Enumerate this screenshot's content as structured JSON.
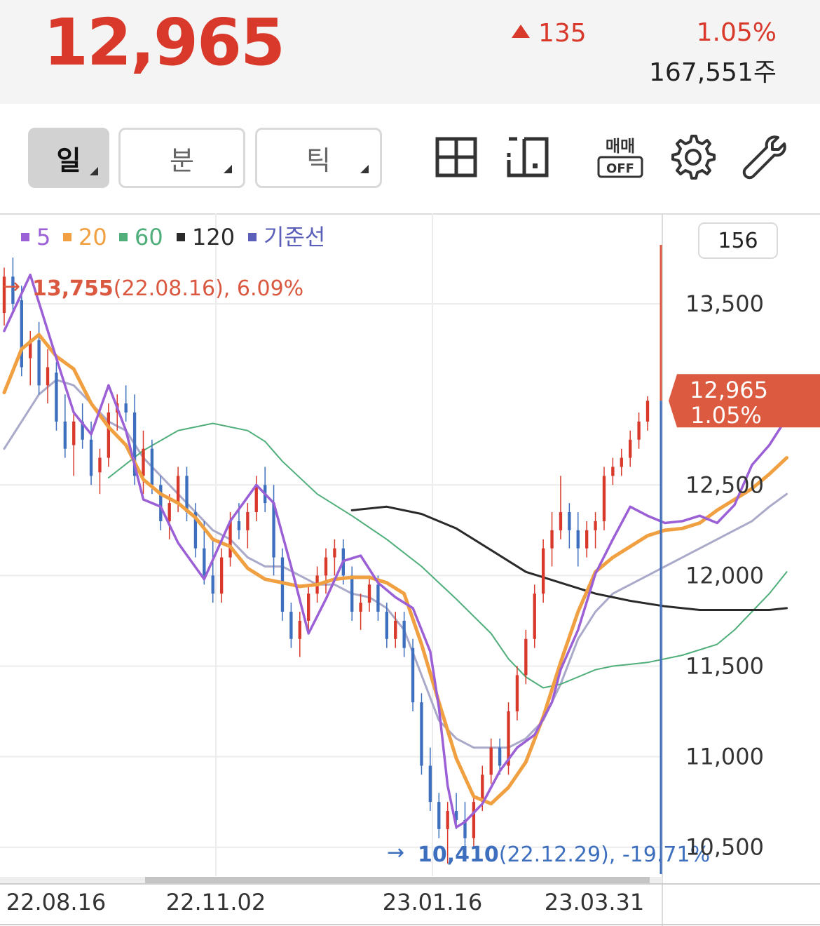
{
  "quote": {
    "price": "12,965",
    "change": "135",
    "change_rate": "1.05%",
    "volume": "167,551주"
  },
  "toolbar": {
    "day_label": "일",
    "minute_label": "분",
    "tick_label": "틱",
    "trade_badge_top": "매매",
    "trade_badge_bottom": "OFF"
  },
  "icons": [
    "grid-layout-icon",
    "split-layout-icon",
    "trade-off-icon",
    "gear-icon",
    "wrench-icon"
  ],
  "colors": {
    "up": "#d8392b",
    "down": "#3d6fbe",
    "ma5": "#9b5fd6",
    "ma20": "#f0a040",
    "ma60": "#4fae7a",
    "ma120": "#2a2a2a",
    "base_line": "#5b5fb8",
    "base_line_drawn": "#a9a9c9"
  },
  "chart_data": {
    "type": "candlestick",
    "legend": [
      {
        "label": "5",
        "color": "#9b5fd6"
      },
      {
        "label": "20",
        "color": "#f0a040"
      },
      {
        "label": "60",
        "color": "#4fae7a"
      },
      {
        "label": "120",
        "color": "#2a2a2a"
      },
      {
        "label": "기준선",
        "color": "#5b5fb8"
      }
    ],
    "visible_count": "156",
    "y_ticks": [
      13500,
      12500,
      12000,
      11500,
      11000,
      10500
    ],
    "y_tick_labels": [
      "13,500",
      "12,500",
      "12,000",
      "11,500",
      "11,000",
      "10,500"
    ],
    "ylim": [
      10340,
      14000
    ],
    "x_ticks": [
      "22.08.16",
      "22.11.02",
      "23.01.16",
      "23.03.31"
    ],
    "current": {
      "value": 12965,
      "price_label": "12,965",
      "rate_label": "1.05%"
    },
    "high_marker": {
      "value_label": "13,755",
      "detail": "(22.08.16), 6.09%",
      "value": 13755
    },
    "low_marker": {
      "value_label": "10,410",
      "detail": "(22.12.29), -19.71%",
      "value": 10410
    },
    "candles": [
      [
        13450,
        13700,
        13380,
        13650
      ],
      [
        13650,
        13755,
        13450,
        13500
      ],
      [
        13520,
        13600,
        13100,
        13150
      ],
      [
        13200,
        13350,
        13050,
        13300
      ],
      [
        13300,
        13400,
        13000,
        13050
      ],
      [
        13050,
        13250,
        12950,
        13150
      ],
      [
        13120,
        13180,
        12800,
        12850
      ],
      [
        12850,
        13000,
        12650,
        12700
      ],
      [
        12720,
        12900,
        12550,
        12850
      ],
      [
        12850,
        12950,
        12700,
        12750
      ],
      [
        12750,
        12850,
        12500,
        12550
      ],
      [
        12570,
        12700,
        12450,
        12650
      ],
      [
        12650,
        12950,
        12600,
        12900
      ],
      [
        12900,
        13000,
        12800,
        12950
      ],
      [
        12950,
        13050,
        12850,
        12900
      ],
      [
        12900,
        13000,
        12500,
        12550
      ],
      [
        12550,
        12800,
        12450,
        12700
      ],
      [
        12700,
        12750,
        12450,
        12500
      ],
      [
        12500,
        12550,
        12250,
        12300
      ],
      [
        12300,
        12450,
        12200,
        12400
      ],
      [
        12400,
        12600,
        12350,
        12550
      ],
      [
        12550,
        12600,
        12300,
        12350
      ],
      [
        12350,
        12400,
        12100,
        12150
      ],
      [
        12150,
        12300,
        11950,
        12000
      ],
      [
        12000,
        12200,
        11850,
        11900
      ],
      [
        11900,
        12150,
        11850,
        12100
      ],
      [
        12100,
        12350,
        12050,
        12300
      ],
      [
        12300,
        12400,
        12200,
        12250
      ],
      [
        12250,
        12400,
        12150,
        12350
      ],
      [
        12350,
        12550,
        12300,
        12500
      ],
      [
        12500,
        12600,
        12350,
        12400
      ],
      [
        12400,
        12500,
        12000,
        12100
      ],
      [
        12100,
        12150,
        11750,
        11800
      ],
      [
        11800,
        11850,
        11600,
        11650
      ],
      [
        11650,
        11800,
        11550,
        11750
      ],
      [
        11750,
        11950,
        11700,
        11900
      ],
      [
        11900,
        12050,
        11850,
        12000
      ],
      [
        12000,
        12150,
        11900,
        12100
      ],
      [
        12100,
        12200,
        12000,
        12150
      ],
      [
        12150,
        12200,
        11950,
        12000
      ],
      [
        12000,
        12050,
        11750,
        11800
      ],
      [
        11800,
        11900,
        11700,
        11850
      ],
      [
        11850,
        12000,
        11800,
        11950
      ],
      [
        11950,
        12000,
        11750,
        11800
      ],
      [
        11800,
        11850,
        11600,
        11650
      ],
      [
        11650,
        11800,
        11600,
        11750
      ],
      [
        11750,
        11800,
        11550,
        11600
      ],
      [
        11600,
        11650,
        11250,
        11300
      ],
      [
        11300,
        11350,
        10900,
        10950
      ],
      [
        10950,
        11050,
        10700,
        10750
      ],
      [
        10750,
        10800,
        10550,
        10600
      ],
      [
        10600,
        10750,
        10410,
        10700
      ],
      [
        10700,
        10800,
        10600,
        10650
      ],
      [
        10650,
        10750,
        10500,
        10550
      ],
      [
        10550,
        10800,
        10500,
        10750
      ],
      [
        10750,
        10950,
        10700,
        10900
      ],
      [
        10900,
        11100,
        10850,
        11050
      ],
      [
        11050,
        11100,
        10900,
        10950
      ],
      [
        10950,
        11300,
        10900,
        11250
      ],
      [
        11250,
        11500,
        11200,
        11450
      ],
      [
        11450,
        11700,
        11400,
        11650
      ],
      [
        11650,
        11950,
        11600,
        11900
      ],
      [
        11900,
        12200,
        11850,
        12150
      ],
      [
        12150,
        12350,
        12050,
        12250
      ],
      [
        12250,
        12550,
        12200,
        12350
      ],
      [
        12350,
        12400,
        12150,
        12250
      ],
      [
        12250,
        12350,
        12050,
        12150
      ],
      [
        12150,
        12300,
        12100,
        12250
      ],
      [
        12250,
        12350,
        12150,
        12300
      ],
      [
        12300,
        12600,
        12250,
        12550
      ],
      [
        12550,
        12650,
        12500,
        12600
      ],
      [
        12600,
        12700,
        12550,
        12650
      ],
      [
        12650,
        12800,
        12600,
        12750
      ],
      [
        12750,
        12900,
        12700,
        12850
      ],
      [
        12850,
        12990,
        12800,
        12965
      ]
    ],
    "ma5": [
      [
        0,
        13350
      ],
      [
        3,
        13660
      ],
      [
        6,
        13200
      ],
      [
        8,
        12900
      ],
      [
        10,
        12780
      ],
      [
        12,
        13050
      ],
      [
        14,
        12800
      ],
      [
        16,
        12420
      ],
      [
        18,
        12380
      ],
      [
        20,
        12180
      ],
      [
        23,
        11980
      ],
      [
        26,
        12300
      ],
      [
        29,
        12500
      ],
      [
        31,
        12400
      ],
      [
        33,
        12050
      ],
      [
        35,
        11680
      ],
      [
        37,
        11870
      ],
      [
        39,
        12080
      ],
      [
        41,
        12110
      ],
      [
        43,
        11960
      ],
      [
        45,
        11880
      ],
      [
        47,
        11820
      ],
      [
        49,
        11580
      ],
      [
        50,
        11270
      ],
      [
        51,
        10840
      ],
      [
        52,
        10610
      ],
      [
        53,
        10640
      ],
      [
        54,
        10690
      ],
      [
        55,
        10740
      ],
      [
        57,
        10920
      ],
      [
        59,
        11050
      ],
      [
        61,
        11120
      ],
      [
        63,
        11300
      ],
      [
        64,
        11480
      ],
      [
        66,
        11700
      ],
      [
        68,
        12010
      ],
      [
        70,
        12200
      ],
      [
        72,
        12380
      ],
      [
        74,
        12330
      ],
      [
        76,
        12290
      ],
      [
        78,
        12300
      ],
      [
        80,
        12330
      ],
      [
        82,
        12290
      ],
      [
        84,
        12390
      ],
      [
        86,
        12610
      ],
      [
        88,
        12720
      ],
      [
        90,
        12870
      ]
    ],
    "ma20": [
      [
        0,
        13010
      ],
      [
        2,
        13250
      ],
      [
        4,
        13330
      ],
      [
        6,
        13210
      ],
      [
        8,
        13140
      ],
      [
        10,
        12950
      ],
      [
        12,
        12820
      ],
      [
        14,
        12720
      ],
      [
        16,
        12530
      ],
      [
        18,
        12450
      ],
      [
        20,
        12400
      ],
      [
        22,
        12320
      ],
      [
        24,
        12200
      ],
      [
        26,
        12160
      ],
      [
        28,
        12040
      ],
      [
        30,
        11980
      ],
      [
        32,
        11960
      ],
      [
        34,
        11940
      ],
      [
        36,
        11950
      ],
      [
        38,
        11980
      ],
      [
        40,
        11990
      ],
      [
        42,
        11990
      ],
      [
        44,
        11960
      ],
      [
        46,
        11900
      ],
      [
        48,
        11620
      ],
      [
        50,
        11300
      ],
      [
        52,
        10990
      ],
      [
        54,
        10780
      ],
      [
        56,
        10740
      ],
      [
        58,
        10830
      ],
      [
        60,
        10970
      ],
      [
        62,
        11220
      ],
      [
        64,
        11520
      ],
      [
        66,
        11800
      ],
      [
        68,
        12020
      ],
      [
        70,
        12100
      ],
      [
        72,
        12160
      ],
      [
        74,
        12220
      ],
      [
        76,
        12250
      ],
      [
        78,
        12260
      ],
      [
        80,
        12290
      ],
      [
        82,
        12360
      ],
      [
        84,
        12420
      ],
      [
        86,
        12480
      ],
      [
        88,
        12560
      ],
      [
        90,
        12650
      ]
    ],
    "ma60": [
      [
        12,
        12540
      ],
      [
        16,
        12690
      ],
      [
        20,
        12800
      ],
      [
        24,
        12840
      ],
      [
        28,
        12800
      ],
      [
        30,
        12740
      ],
      [
        32,
        12630
      ],
      [
        36,
        12450
      ],
      [
        40,
        12330
      ],
      [
        44,
        12200
      ],
      [
        48,
        12050
      ],
      [
        52,
        11870
      ],
      [
        56,
        11680
      ],
      [
        58,
        11540
      ],
      [
        60,
        11440
      ],
      [
        62,
        11380
      ],
      [
        64,
        11400
      ],
      [
        66,
        11440
      ],
      [
        68,
        11480
      ],
      [
        70,
        11500
      ],
      [
        74,
        11520
      ],
      [
        78,
        11560
      ],
      [
        82,
        11620
      ],
      [
        84,
        11700
      ],
      [
        86,
        11800
      ],
      [
        88,
        11900
      ],
      [
        90,
        12020
      ]
    ],
    "ma120": [
      [
        40,
        12360
      ],
      [
        44,
        12380
      ],
      [
        48,
        12340
      ],
      [
        52,
        12260
      ],
      [
        56,
        12140
      ],
      [
        60,
        12020
      ],
      [
        64,
        11960
      ],
      [
        68,
        11900
      ],
      [
        72,
        11860
      ],
      [
        76,
        11830
      ],
      [
        80,
        11810
      ],
      [
        84,
        11810
      ],
      [
        88,
        11810
      ],
      [
        90,
        11820
      ]
    ],
    "base_line": [
      [
        0,
        12700
      ],
      [
        2,
        12850
      ],
      [
        4,
        13000
      ],
      [
        6,
        13080
      ],
      [
        8,
        13050
      ],
      [
        10,
        12950
      ],
      [
        12,
        12850
      ],
      [
        14,
        12800
      ],
      [
        16,
        12650
      ],
      [
        18,
        12550
      ],
      [
        20,
        12450
      ],
      [
        22,
        12350
      ],
      [
        24,
        12250
      ],
      [
        26,
        12200
      ],
      [
        28,
        12100
      ],
      [
        30,
        12050
      ],
      [
        32,
        12050
      ],
      [
        34,
        12000
      ],
      [
        36,
        11950
      ],
      [
        38,
        11950
      ],
      [
        40,
        11900
      ],
      [
        42,
        11880
      ],
      [
        44,
        11820
      ],
      [
        46,
        11700
      ],
      [
        48,
        11450
      ],
      [
        50,
        11200
      ],
      [
        52,
        11100
      ],
      [
        54,
        11050
      ],
      [
        56,
        11050
      ],
      [
        58,
        11050
      ],
      [
        60,
        11100
      ],
      [
        62,
        11200
      ],
      [
        64,
        11400
      ],
      [
        66,
        11650
      ],
      [
        68,
        11800
      ],
      [
        70,
        11900
      ],
      [
        72,
        11950
      ],
      [
        74,
        12000
      ],
      [
        76,
        12050
      ],
      [
        78,
        12100
      ],
      [
        80,
        12150
      ],
      [
        82,
        12200
      ],
      [
        84,
        12250
      ],
      [
        86,
        12300
      ],
      [
        88,
        12380
      ],
      [
        90,
        12450
      ]
    ]
  }
}
